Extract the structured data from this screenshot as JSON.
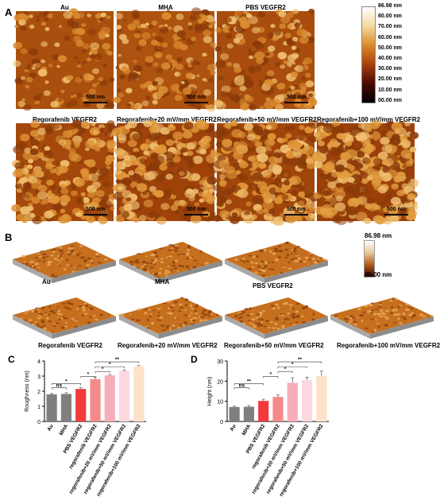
{
  "panelA": {
    "label": "A",
    "images": [
      {
        "title": "Au",
        "scale": "500 nm",
        "tone": 0
      },
      {
        "title": "MHA",
        "scale": "500 nm",
        "tone": 1
      },
      {
        "title": "PBS VEGFR2",
        "scale": "500 nm",
        "tone": 2
      },
      {
        "title": "Regorafenib VEGFR2",
        "scale": "500 nm",
        "tone": 3
      },
      {
        "title": "Regorafenib+20 mV/mm VEGFR2",
        "scale": "500 nm",
        "tone": 4
      },
      {
        "title": "Regorafenib+50 mV/mm VEGFR2",
        "scale": "500 nm",
        "tone": 5
      },
      {
        "title": "Regorafenib+100 mV/mm VEGFR2",
        "scale": "500 nm",
        "tone": 6
      }
    ],
    "colorbar": {
      "ticks": [
        "86.98 nm",
        "80.00 nm",
        "70.00 nm",
        "60.00 nm",
        "50.00 nm",
        "40.00 nm",
        "30.00 nm",
        "20.00 nm",
        "10.00 nm",
        "00.00 nm"
      ],
      "colors": [
        "#ffffff",
        "#f4d9a0",
        "#d98a2a",
        "#a8400c",
        "#4a0a02",
        "#000000"
      ]
    }
  },
  "panelB": {
    "label": "B",
    "images": [
      {
        "title": "Au"
      },
      {
        "title": "MHA"
      },
      {
        "title": "PBS VEGFR2"
      },
      {
        "title": "Regorafenib VEGFR2"
      },
      {
        "title": "Regorafenib+20 mV/mm VEGFR2"
      },
      {
        "title": "Regorafenib+50 mV/mm VEGFR2"
      },
      {
        "title": "Regorafenib+100 mV/mm VEGFR2"
      }
    ],
    "colorbar": {
      "top": "86.98 nm",
      "bottom": "00.00 nm"
    }
  },
  "chart_data": [
    {
      "panel": "C",
      "type": "bar",
      "ylabel": "Roughness (nm)",
      "ylim": [
        0,
        4
      ],
      "yticks": [
        "0",
        "1",
        "2",
        "3",
        "4"
      ],
      "categories": [
        "Au",
        "MHA",
        "PBS VEGFR2",
        "regorafenib VEGFR2",
        "regorafenib+20 mV/mm VEGFR2",
        "regorafenib+50 mV/mm VEGFR2",
        "regorafenib+100 mV/mm VEGFR2"
      ],
      "values": [
        1.8,
        1.82,
        2.15,
        2.8,
        3.05,
        3.35,
        3.65
      ],
      "errors": [
        0.05,
        0.08,
        0.08,
        0.12,
        0.05,
        0.05,
        0.05
      ],
      "colors": [
        "#7f7f7f",
        "#7f7f7f",
        "#f23a3a",
        "#f58a8a",
        "#f7aeb8",
        "#fbd8de",
        "#fde2c8"
      ],
      "significance": [
        {
          "from": 0,
          "to": 1,
          "text": "ns"
        },
        {
          "from": 0,
          "to": 2,
          "text": "*"
        },
        {
          "from": 2,
          "to": 3,
          "text": "*"
        },
        {
          "from": 3,
          "to": 4,
          "text": "*"
        },
        {
          "from": 3,
          "to": 5,
          "text": "*"
        },
        {
          "from": 3,
          "to": 6,
          "text": "**"
        }
      ]
    },
    {
      "panel": "D",
      "type": "bar",
      "ylabel": "Height (nm)",
      "ylim": [
        0,
        30
      ],
      "yticks": [
        "0",
        "10",
        "20",
        "30"
      ],
      "categories": [
        "Au",
        "MHA",
        "PBS VEGFR2",
        "regorafenib VEGFR2",
        "regorafenib+20 mV/mm VEGFR2",
        "regorafenib+50 mV/mm VEGFR2",
        "regorafenib+100 mV/mm VEGFR2"
      ],
      "values": [
        7.2,
        7.3,
        10.2,
        12.2,
        19.2,
        20.5,
        22.5
      ],
      "errors": [
        0.4,
        0.6,
        0.8,
        1.0,
        2.5,
        1.5,
        2.5
      ],
      "colors": [
        "#7f7f7f",
        "#7f7f7f",
        "#f23a3a",
        "#f58a8a",
        "#f7aeb8",
        "#fbd8de",
        "#fde2c8"
      ],
      "significance": [
        {
          "from": 0,
          "to": 1,
          "text": "ns"
        },
        {
          "from": 0,
          "to": 2,
          "text": "**"
        },
        {
          "from": 2,
          "to": 3,
          "text": "*"
        },
        {
          "from": 3,
          "to": 4,
          "text": "*"
        },
        {
          "from": 3,
          "to": 5,
          "text": "*"
        },
        {
          "from": 3,
          "to": 6,
          "text": "**"
        }
      ]
    }
  ]
}
